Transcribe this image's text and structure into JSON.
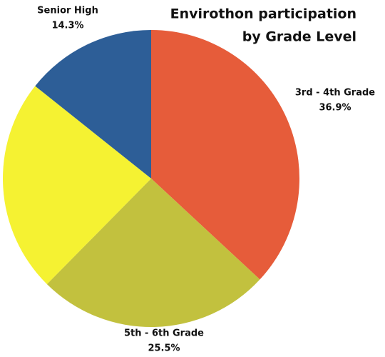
{
  "chart_data": {
    "type": "pie",
    "title": [
      "Envirothon participation",
      "by Grade Level"
    ],
    "categories": [
      "3rd - 4th Grade",
      "5th - 6th Grade",
      null,
      "Senior High"
    ],
    "values": [
      36.9,
      25.5,
      23.3,
      14.3
    ],
    "value_labels": [
      "36.9%",
      "25.5%",
      null,
      "14.3%"
    ],
    "colors": [
      "#e65c3a",
      "#c2c13e",
      "#f5f232",
      "#2d5e97"
    ]
  }
}
